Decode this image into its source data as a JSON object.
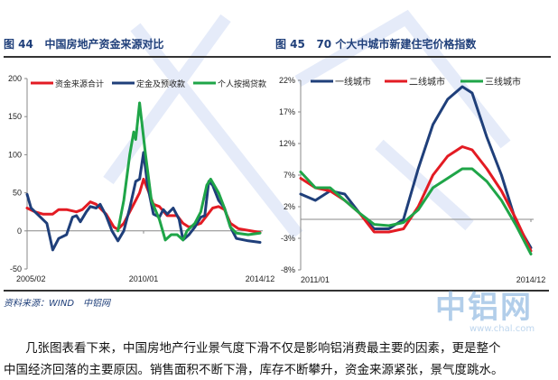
{
  "figures": [
    {
      "label": "图 44",
      "title": "中国房地产资金来源对比"
    },
    {
      "label": "图 45",
      "title": "70 个大中城市新建住宅价格指数"
    }
  ],
  "source": "资料来源：WIND　中铝网",
  "paragraph": [
    "几张图表看下来，中国房地产行业景气度下滑不仅是影响铝消费最主要的因素，更是整个",
    "中国经济回落的主要原因。销售面积不断下滑，库存不断攀升，资金来源紧张，景气度跳水。"
  ],
  "logo": {
    "text": "中铝网",
    "url": "www.chal.com"
  },
  "chart_data": [
    {
      "type": "line",
      "ylim": [
        -50,
        200
      ],
      "yticks": [
        "200",
        "150",
        "100",
        "50",
        "0",
        "-50"
      ],
      "yvals": [
        200,
        150,
        100,
        50,
        0,
        -50
      ],
      "xticks": [
        "2005/02",
        "2010/01",
        "2014/12"
      ],
      "xrange": [
        "2005/02",
        "2014/12"
      ],
      "legend": "top",
      "series": [
        {
          "name": "资金来源合计",
          "color": "#e31b23",
          "points": [
            [
              "2005/02",
              30
            ],
            [
              "2005/06",
              25
            ],
            [
              "2005/10",
              22
            ],
            [
              "2006/03",
              22
            ],
            [
              "2006/06",
              28
            ],
            [
              "2006/10",
              28
            ],
            [
              "2007/03",
              25
            ],
            [
              "2007/06",
              28
            ],
            [
              "2007/10",
              38
            ],
            [
              "2008/01",
              35
            ],
            [
              "2008/06",
              22
            ],
            [
              "2008/10",
              5
            ],
            [
              "2008/12",
              2
            ],
            [
              "2009/03",
              10
            ],
            [
              "2009/06",
              25
            ],
            [
              "2009/09",
              40
            ],
            [
              "2009/11",
              50
            ],
            [
              "2010/01",
              68
            ],
            [
              "2010/03",
              55
            ],
            [
              "2010/06",
              35
            ],
            [
              "2010/09",
              32
            ],
            [
              "2011/01",
              20
            ],
            [
              "2011/06",
              20
            ],
            [
              "2011/09",
              10
            ],
            [
              "2011/12",
              5
            ],
            [
              "2012/06",
              10
            ],
            [
              "2012/09",
              20
            ],
            [
              "2012/12",
              30
            ],
            [
              "2013/03",
              32
            ],
            [
              "2013/06",
              28
            ],
            [
              "2013/09",
              10
            ],
            [
              "2014/01",
              3
            ],
            [
              "2014/12",
              -2
            ]
          ]
        },
        {
          "name": "定金及预收款",
          "color": "#1f3f7a",
          "points": [
            [
              "2005/02",
              48
            ],
            [
              "2005/04",
              30
            ],
            [
              "2005/08",
              20
            ],
            [
              "2005/12",
              10
            ],
            [
              "2006/03",
              -25
            ],
            [
              "2006/06",
              -10
            ],
            [
              "2006/10",
              -5
            ],
            [
              "2007/01",
              18
            ],
            [
              "2007/03",
              20
            ],
            [
              "2007/05",
              12
            ],
            [
              "2007/08",
              25
            ],
            [
              "2007/10",
              32
            ],
            [
              "2008/01",
              30
            ],
            [
              "2008/03",
              35
            ],
            [
              "2008/06",
              20
            ],
            [
              "2008/09",
              0
            ],
            [
              "2008/12",
              -13
            ],
            [
              "2009/03",
              0
            ],
            [
              "2009/06",
              30
            ],
            [
              "2009/09",
              65
            ],
            [
              "2009/11",
              68
            ],
            [
              "2010/01",
              103
            ],
            [
              "2010/03",
              60
            ],
            [
              "2010/06",
              22
            ],
            [
              "2010/09",
              18
            ],
            [
              "2010/11",
              28
            ],
            [
              "2011/01",
              22
            ],
            [
              "2011/04",
              30
            ],
            [
              "2011/07",
              15
            ],
            [
              "2011/09",
              -12
            ],
            [
              "2011/12",
              -5
            ],
            [
              "2012/03",
              5
            ],
            [
              "2012/06",
              18
            ],
            [
              "2012/08",
              20
            ],
            [
              "2012/10",
              65
            ],
            [
              "2012/12",
              60
            ],
            [
              "2013/03",
              40
            ],
            [
              "2013/06",
              30
            ],
            [
              "2013/09",
              5
            ],
            [
              "2013/12",
              -10
            ],
            [
              "2014/06",
              -13
            ],
            [
              "2014/12",
              -15
            ]
          ]
        },
        {
          "name": "个人按揭贷款",
          "color": "#1fa548",
          "points": [
            [
              "2008/12",
              0
            ],
            [
              "2009/03",
              40
            ],
            [
              "2009/06",
              100
            ],
            [
              "2009/08",
              130
            ],
            [
              "2009/09",
              120
            ],
            [
              "2009/11",
              168
            ],
            [
              "2010/02",
              100
            ],
            [
              "2010/05",
              40
            ],
            [
              "2010/09",
              15
            ],
            [
              "2010/12",
              -12
            ],
            [
              "2011/03",
              -5
            ],
            [
              "2011/06",
              -5
            ],
            [
              "2011/09",
              -12
            ],
            [
              "2011/11",
              0
            ],
            [
              "2012/03",
              10
            ],
            [
              "2012/06",
              25
            ],
            [
              "2012/09",
              60
            ],
            [
              "2012/11",
              68
            ],
            [
              "2013/03",
              50
            ],
            [
              "2013/06",
              30
            ],
            [
              "2013/09",
              5
            ],
            [
              "2013/12",
              -3
            ],
            [
              "2014/06",
              -5
            ],
            [
              "2014/12",
              -3
            ]
          ]
        }
      ]
    },
    {
      "type": "line",
      "ylim": [
        -8,
        22
      ],
      "yticks": [
        "22%",
        "17%",
        "12%",
        "7%",
        "2%",
        "-3%",
        "-8%"
      ],
      "yvals": [
        22,
        17,
        12,
        7,
        2,
        -3,
        -8
      ],
      "xticks": [
        "2011/01",
        "2014/12"
      ],
      "xrange": [
        "2011/01",
        "2014/12"
      ],
      "legend": "top",
      "series": [
        {
          "name": "一线城市",
          "color": "#1f3f7a",
          "points": [
            [
              "2011/01",
              4
            ],
            [
              "2011/04",
              3
            ],
            [
              "2011/07",
              4.5
            ],
            [
              "2011/10",
              4
            ],
            [
              "2012/01",
              1
            ],
            [
              "2012/04",
              -1.5
            ],
            [
              "2012/07",
              -1.5
            ],
            [
              "2012/10",
              0
            ],
            [
              "2013/01",
              8
            ],
            [
              "2013/04",
              15
            ],
            [
              "2013/07",
              19
            ],
            [
              "2013/10",
              21
            ],
            [
              "2013/12",
              20
            ],
            [
              "2014/03",
              13
            ],
            [
              "2014/06",
              7
            ],
            [
              "2014/09",
              -0.5
            ],
            [
              "2014/12",
              -4.5
            ]
          ]
        },
        {
          "name": "二线城市",
          "color": "#e31b23",
          "points": [
            [
              "2011/01",
              6.5
            ],
            [
              "2011/04",
              5
            ],
            [
              "2011/07",
              4.5
            ],
            [
              "2011/10",
              3
            ],
            [
              "2012/01",
              1
            ],
            [
              "2012/04",
              -2
            ],
            [
              "2012/07",
              -2
            ],
            [
              "2012/10",
              -1.5
            ],
            [
              "2013/01",
              2
            ],
            [
              "2013/04",
              7
            ],
            [
              "2013/07",
              10
            ],
            [
              "2013/10",
              11.5
            ],
            [
              "2013/12",
              11
            ],
            [
              "2014/03",
              8
            ],
            [
              "2014/06",
              4.5
            ],
            [
              "2014/09",
              0
            ],
            [
              "2014/12",
              -5
            ]
          ]
        },
        {
          "name": "三线城市",
          "color": "#1fa548",
          "points": [
            [
              "2011/01",
              7.5
            ],
            [
              "2011/04",
              5
            ],
            [
              "2011/07",
              5
            ],
            [
              "2011/10",
              3
            ],
            [
              "2012/01",
              1
            ],
            [
              "2012/04",
              -0.8
            ],
            [
              "2012/07",
              -1
            ],
            [
              "2012/10",
              -0.5
            ],
            [
              "2013/01",
              1.5
            ],
            [
              "2013/04",
              5
            ],
            [
              "2013/07",
              6.5
            ],
            [
              "2013/10",
              8
            ],
            [
              "2013/12",
              8
            ],
            [
              "2014/03",
              6
            ],
            [
              "2014/06",
              3
            ],
            [
              "2014/09",
              -1
            ],
            [
              "2014/12",
              -5.5
            ]
          ]
        }
      ]
    }
  ]
}
